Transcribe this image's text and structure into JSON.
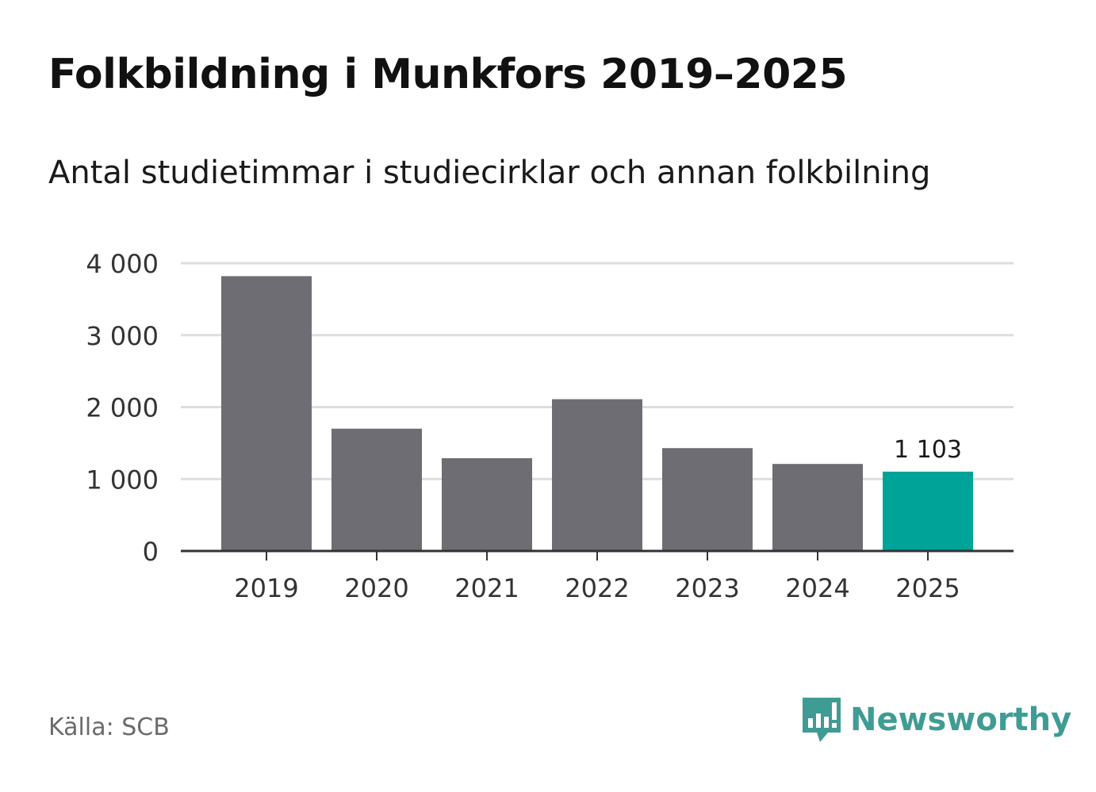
{
  "title": "Folkbildning i Munkfors 2019–2025",
  "subtitle": "Antal studietimmar i studiecirklar och annan folkbilning",
  "source": "Källa: SCB",
  "brand": {
    "name": "Newsworthy",
    "icon": "newsworthy-logo-icon",
    "color": "#3f9c94"
  },
  "colors": {
    "bar": "#6e6d73",
    "highlight": "#00a398",
    "grid": "#dddddd",
    "axis": "#333333"
  },
  "chart_data": {
    "type": "bar",
    "categories": [
      "2019",
      "2020",
      "2021",
      "2022",
      "2023",
      "2024",
      "2025"
    ],
    "values": [
      3820,
      1700,
      1290,
      2110,
      1430,
      1210,
      1103
    ],
    "highlight_index": 6,
    "data_labels": [
      {
        "index": 6,
        "text": "1 103"
      }
    ],
    "yticks": [
      0,
      1000,
      2000,
      3000,
      4000
    ],
    "ytick_labels": [
      "0",
      "1 000",
      "2 000",
      "3 000",
      "4 000"
    ],
    "ylim": [
      0,
      4000
    ],
    "grid": true,
    "xlabel": "",
    "ylabel": ""
  }
}
